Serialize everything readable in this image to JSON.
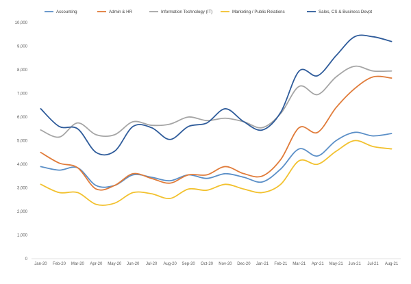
{
  "chart_data": {
    "type": "line",
    "title": "",
    "xlabel": "",
    "ylabel": "",
    "ylim": [
      0,
      10000
    ],
    "yticks": [
      0,
      1000,
      2000,
      3000,
      4000,
      5000,
      6000,
      7000,
      8000,
      9000,
      10000
    ],
    "ytick_labels": [
      "0",
      "1,000",
      "2,000",
      "3,000",
      "4,000",
      "5,000",
      "6,000",
      "7,000",
      "8,000",
      "9,000",
      "10,000"
    ],
    "grid": false,
    "legend_position": "top",
    "categories": [
      "Jan-20",
      "Feb-20",
      "Mar-20",
      "Apr-20",
      "May-20",
      "Jun-20",
      "Jul-20",
      "Aug-20",
      "Sep-20",
      "Oct-20",
      "Nov-20",
      "Dec-20",
      "Jan-21",
      "Feb-21",
      "Mar-21",
      "Apr-21",
      "May-21",
      "Jun-21",
      "Jul-21",
      "Aug-21"
    ],
    "series": [
      {
        "name": "Accounting",
        "color": "#5b8fc7",
        "values": [
          3900,
          3750,
          3850,
          3100,
          3100,
          3550,
          3450,
          3300,
          3550,
          3400,
          3600,
          3450,
          3250,
          3800,
          4650,
          4350,
          5000,
          5350,
          5200,
          5300
        ]
      },
      {
        "name": "Admin & HR",
        "color": "#e07b39",
        "values": [
          4500,
          4050,
          3850,
          2950,
          3100,
          3600,
          3400,
          3200,
          3550,
          3550,
          3900,
          3600,
          3500,
          4200,
          5550,
          5350,
          6400,
          7200,
          7700,
          7650
        ]
      },
      {
        "name": "Information Technology (IT)",
        "color": "#a5a5a5",
        "values": [
          5450,
          5150,
          5750,
          5250,
          5250,
          5800,
          5650,
          5700,
          6000,
          5850,
          5950,
          5800,
          5550,
          6150,
          7300,
          6950,
          7700,
          8150,
          7950,
          7950
        ]
      },
      {
        "name": "Marketing / Public Relations",
        "color": "#f2c12e",
        "values": [
          3150,
          2800,
          2800,
          2300,
          2350,
          2800,
          2750,
          2550,
          2950,
          2900,
          3150,
          2950,
          2800,
          3150,
          4150,
          4000,
          4550,
          5000,
          4750,
          4650
        ]
      },
      {
        "name": "Sales, CS & Business Devpt",
        "color": "#2e5b9a",
        "values": [
          6350,
          5600,
          5500,
          4500,
          4550,
          5600,
          5550,
          5050,
          5600,
          5750,
          6350,
          5800,
          5450,
          6200,
          7950,
          7750,
          8600,
          9400,
          9400,
          9200
        ]
      }
    ]
  }
}
